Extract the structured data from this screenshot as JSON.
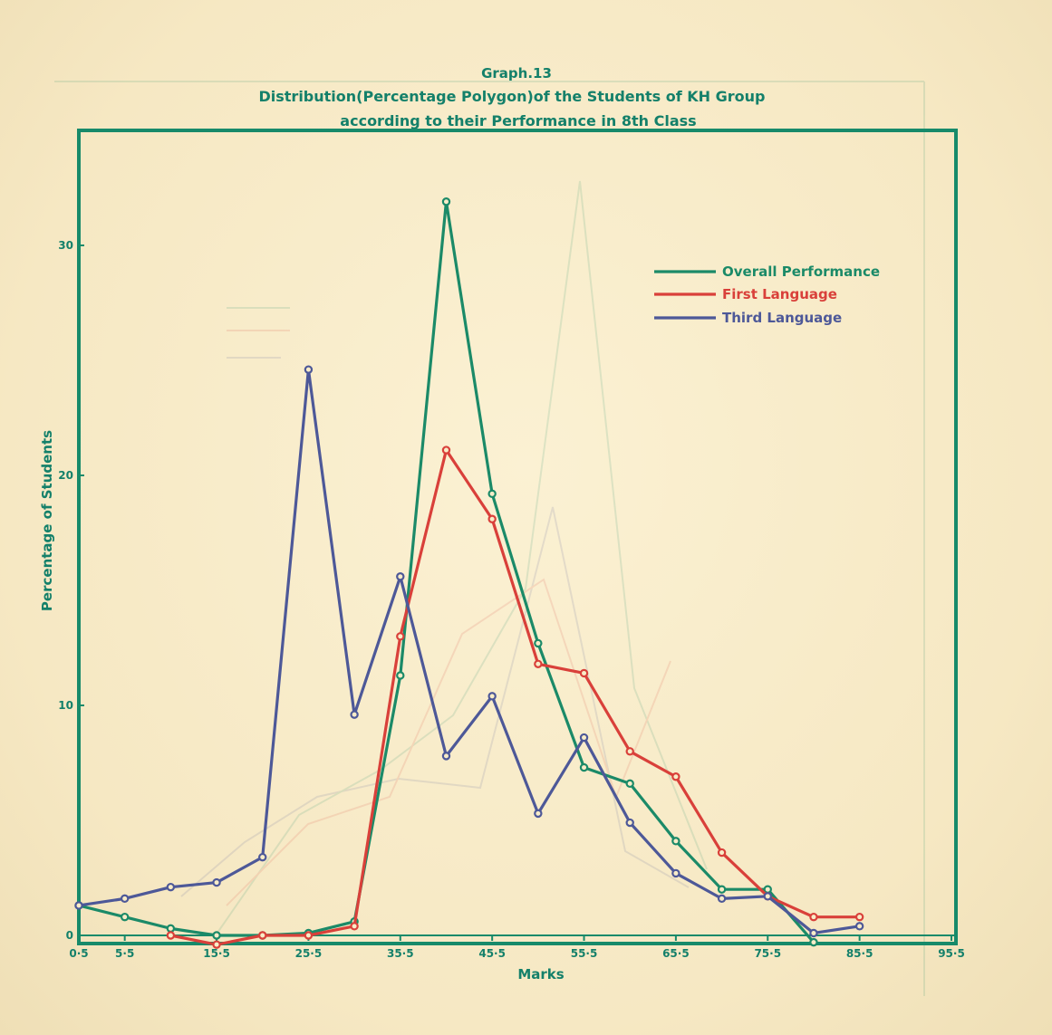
{
  "chart_data": {
    "type": "line",
    "title": "Graph.13",
    "subtitle_lines": [
      "Distribution(Percentage Polygon)of the Students of KH Group",
      "according to their Performance in 8th Class"
    ],
    "xlabel": "Marks",
    "ylabel": "Percentage of Students",
    "x_ticks": [
      "0·5",
      "5·5",
      "15·5",
      "25·5",
      "35·5",
      "45·5",
      "55·5",
      "65·5",
      "75·5",
      "85·5",
      "95·5"
    ],
    "x_tick_values": [
      0.5,
      5.5,
      15.5,
      25.5,
      35.5,
      45.5,
      55.5,
      65.5,
      75.5,
      85.5,
      95.5
    ],
    "y_ticks": [
      "0",
      "10",
      "20",
      "30"
    ],
    "y_tick_values": [
      0,
      10,
      20,
      30
    ],
    "xlim": [
      0.5,
      95.5
    ],
    "ylim": [
      0,
      35
    ],
    "grid": false,
    "legend_position": "top-right",
    "series": [
      {
        "name": "Overall Performance",
        "color": "#1b8a68",
        "x": [
          0.5,
          5.5,
          10.5,
          15.5,
          20.5,
          25.5,
          30.5,
          35.5,
          40.5,
          45.5,
          50.5,
          55.5,
          60.5,
          65.5,
          70.5,
          75.5,
          80.5
        ],
        "y": [
          1.3,
          0.8,
          0.3,
          0.0,
          0.0,
          0.1,
          0.6,
          11.3,
          31.9,
          19.2,
          12.7,
          7.3,
          6.6,
          4.1,
          2.0,
          2.0,
          -0.3
        ]
      },
      {
        "name": "First Language",
        "color": "#d9403a",
        "x": [
          10.5,
          15.5,
          20.5,
          25.5,
          30.5,
          35.5,
          40.5,
          45.5,
          50.5,
          55.5,
          60.5,
          65.5,
          70.5,
          75.5,
          80.5,
          85.5
        ],
        "y": [
          0.0,
          -0.4,
          0.0,
          0.0,
          0.4,
          13.0,
          21.1,
          18.1,
          11.8,
          11.4,
          8.0,
          6.9,
          3.6,
          1.7,
          0.8,
          0.8
        ]
      },
      {
        "name": "Third Language",
        "color": "#4d5898",
        "x": [
          0.5,
          5.5,
          10.5,
          15.5,
          20.5,
          25.5,
          30.5,
          35.5,
          40.5,
          45.5,
          50.5,
          55.5,
          60.5,
          65.5,
          70.5,
          75.5,
          80.5,
          85.5,
          90.5
        ],
        "y": [
          1.3,
          1.6,
          2.1,
          2.3,
          3.4,
          24.6,
          9.6,
          15.6,
          7.8,
          10.4,
          5.3,
          8.6,
          4.9,
          2.7,
          1.6,
          1.7,
          0.1,
          0.4,
          null
        ]
      }
    ]
  }
}
